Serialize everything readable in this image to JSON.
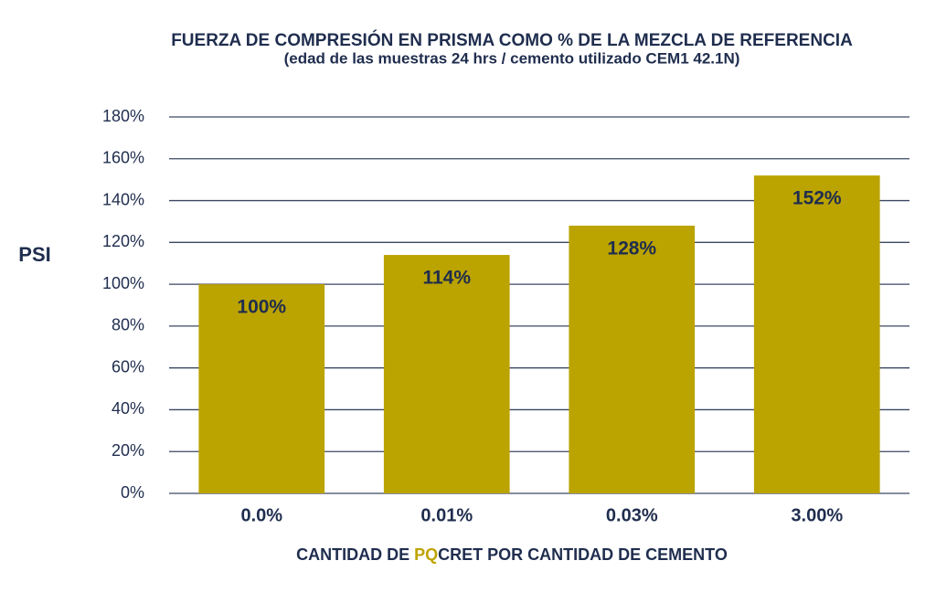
{
  "chart_data": {
    "type": "bar",
    "title": "FUERZA DE COMPRESIÓN EN PRISMA COMO % DE LA MEZCLA DE REFERENCIA",
    "subtitle": "(edad de las muestras 24 hrs / cemento utilizado CEM1 42.1N)",
    "y_label": "PSI",
    "x_label": [
      "CANTIDAD DE ",
      "PQ",
      "CRET POR CANTIDAD DE CEMENTO"
    ],
    "x_label_colors": [
      "#1f2d4e",
      "#bfa300",
      "#1f2d4e"
    ],
    "categories": [
      "0.0%",
      "0.01%",
      "0.03%",
      "3.00%"
    ],
    "values": [
      100,
      114,
      128,
      152
    ],
    "value_labels": [
      "100%",
      "114%",
      "128%",
      "152%"
    ],
    "color": "#bba300",
    "ylim": [
      0,
      180
    ],
    "yticks": [
      {
        "value": 0,
        "label": "0%"
      },
      {
        "value": 20,
        "label": "20%"
      },
      {
        "value": 40,
        "label": "40%"
      },
      {
        "value": 60,
        "label": "60%"
      },
      {
        "value": 80,
        "label": "80%"
      },
      {
        "value": 100,
        "label": "100%"
      },
      {
        "value": 120,
        "label": "120%"
      },
      {
        "value": 140,
        "label": "140%"
      },
      {
        "value": 160,
        "label": "160%"
      },
      {
        "value": 180,
        "label": "180%"
      }
    ],
    "grid": true
  }
}
